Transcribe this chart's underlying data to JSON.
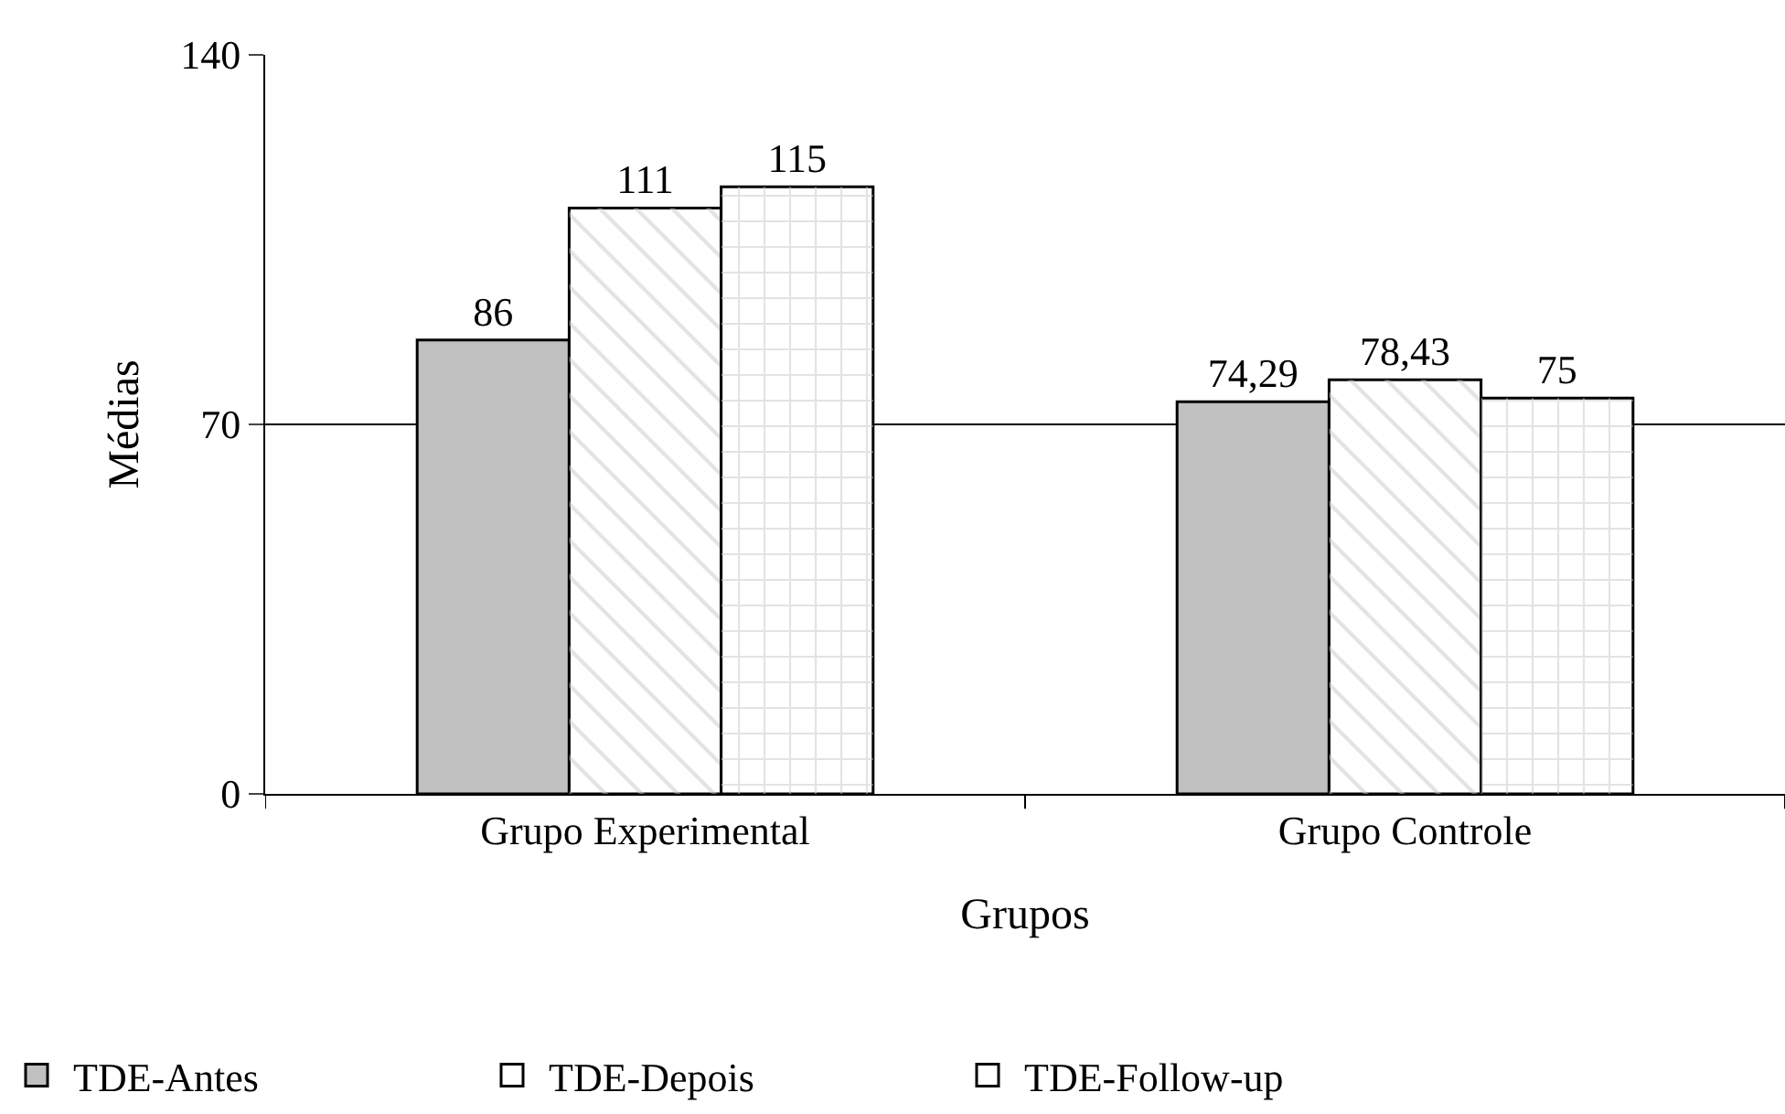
{
  "chart_data": {
    "type": "bar",
    "xlabel": "Grupos",
    "ylabel": "Médias",
    "categories": [
      "Grupo Experimental",
      "Grupo Controle"
    ],
    "series": [
      {
        "name": "TDE-Antes",
        "color": "#c0c0c0",
        "values": [
          86,
          74.29
        ],
        "value_labels": [
          "86",
          "74,29"
        ]
      },
      {
        "name": "TDE-Depois",
        "color": "#ffffff",
        "values": [
          111,
          78.43
        ],
        "value_labels": [
          "111",
          "78,43"
        ]
      },
      {
        "name": "TDE-Follow-up",
        "color": "#ffffff",
        "values": [
          115,
          75
        ],
        "value_labels": [
          "115",
          "75"
        ]
      }
    ],
    "ylim": [
      0,
      140
    ],
    "yticks": [
      0,
      70,
      140
    ],
    "grid": "y",
    "legend": "bottom"
  }
}
